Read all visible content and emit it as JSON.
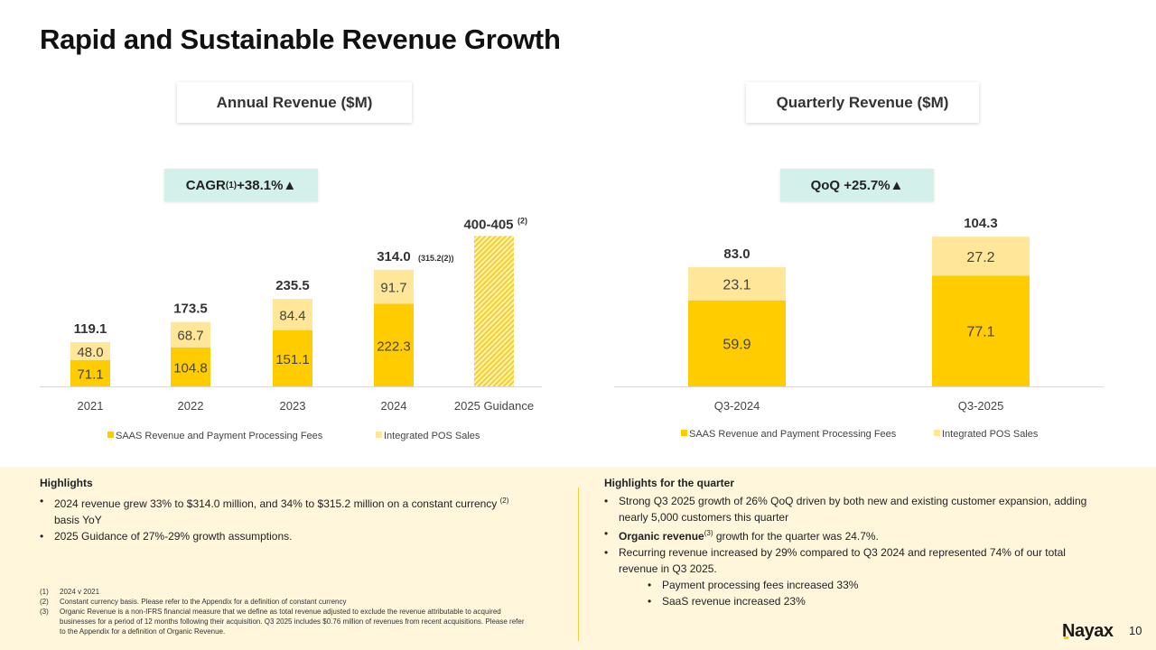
{
  "title": "Rapid and Sustainable Revenue Growth",
  "colors": {
    "saas": "#ffcc00",
    "pos": "#ffe699",
    "badge_bg": "#d3f1ea",
    "highlight_bg": "#fff6dc",
    "divider": "#f1cf3e"
  },
  "annual": {
    "header": "Annual Revenue ($M)",
    "badge": {
      "prefix": "CAGR",
      "sup": "(1)",
      "value": " +38.1% ",
      "arrow": "▲"
    }
  },
  "quarterly": {
    "header": "Quarterly Revenue ($M)",
    "badge": {
      "text": "QoQ +25.7% ",
      "arrow": "▲"
    }
  },
  "chart_data": [
    {
      "type": "bar",
      "stacked": true,
      "title": "Annual Revenue ($M)",
      "xlabel": "",
      "ylabel": "",
      "categories": [
        "2021",
        "2022",
        "2023",
        "2024",
        "2025 Guidance"
      ],
      "series": [
        {
          "name": "SAAS Revenue and Payment Processing Fees",
          "values": [
            71.1,
            104.8,
            151.1,
            222.3,
            null
          ],
          "labels": [
            "71.1",
            "104.8",
            "151.1",
            "222.3",
            ""
          ]
        },
        {
          "name": "Integrated POS Sales",
          "values": [
            48.0,
            68.7,
            84.4,
            91.7,
            null
          ],
          "labels": [
            "48.0",
            "68.7",
            "84.4",
            "91.7",
            ""
          ]
        }
      ],
      "totals": [
        119.1,
        173.5,
        235.5,
        314.0,
        null
      ],
      "total_labels": [
        "119.1",
        "173.5",
        "235.5",
        "314.0",
        "400-405"
      ],
      "total_sublabels": [
        "",
        "",
        "",
        "(315.2(2))",
        "(2)"
      ],
      "guidance": {
        "category": "2025 Guidance",
        "low": 400,
        "high": 405,
        "pattern": "hatched"
      },
      "legend": [
        "SAAS Revenue and Payment Processing Fees",
        "Integrated POS Sales"
      ],
      "legend_position": "bottom",
      "grid": false,
      "ylim": [
        0,
        420
      ]
    },
    {
      "type": "bar",
      "stacked": true,
      "title": "Quarterly Revenue ($M)",
      "xlabel": "",
      "ylabel": "",
      "categories": [
        "Q3-2024",
        "Q3-2025"
      ],
      "series": [
        {
          "name": "SAAS Revenue and Payment Processing Fees",
          "values": [
            59.9,
            77.1
          ],
          "labels": [
            "59.9",
            "77.1"
          ]
        },
        {
          "name": "Integrated POS Sales",
          "values": [
            23.1,
            27.2
          ],
          "labels": [
            "23.1",
            "27.2"
          ]
        }
      ],
      "totals": [
        83.0,
        104.3
      ],
      "total_labels": [
        "83.0",
        "104.3"
      ],
      "legend": [
        "SAAS Revenue and Payment Processing Fees",
        "Integrated POS Sales"
      ],
      "legend_position": "bottom",
      "grid": false,
      "ylim": [
        0,
        104.3
      ]
    }
  ],
  "highlights_annual": {
    "title": "Highlights",
    "items": [
      {
        "pre": "2024 revenue grew 33% to $314.0 million, and 34% to $315.2 million on a constant currency ",
        "sup": "(2)",
        "post": " basis YoY"
      },
      {
        "pre": "2025 Guidance of 27%-29% growth assumptions.",
        "sup": "",
        "post": ""
      }
    ]
  },
  "highlights_quarter": {
    "title": "Highlights for the quarter",
    "items": [
      {
        "bold": "",
        "pre": "Strong Q3 2025 growth of 26% QoQ driven by both new and existing customer expansion, adding nearly 5,000 customers this quarter",
        "sup": "",
        "post": ""
      },
      {
        "bold": "Organic revenue",
        "pre": "",
        "sup": "(3)",
        "post": " growth for the quarter was 24.7%."
      },
      {
        "bold": "",
        "pre": "Recurring revenue increased by 29% compared to Q3 2024 and represented 74% of our total revenue in Q3 2025.",
        "sup": "",
        "post": ""
      }
    ],
    "sub_items": [
      "Payment processing fees increased 33%",
      "SaaS revenue increased 23%"
    ]
  },
  "footnotes": [
    {
      "num": "(1)",
      "text": "2024 v 2021"
    },
    {
      "num": "(2)",
      "text": "Constant currency basis. Please refer to the Appendix for a definition of constant currency"
    },
    {
      "num": "(3)",
      "text": "Organic Revenue is a non-IFRS financial measure that we define as total revenue adjusted to exclude the revenue attributable to acquired businesses for a period of 12 months following their acquisition. Q3 2025 includes $0.76 million of revenues from recent acquisitions. Please refer to the Appendix for a definition of Organic Revenue."
    }
  ],
  "footer": {
    "logo": "Nayax",
    "page_number": "10"
  }
}
